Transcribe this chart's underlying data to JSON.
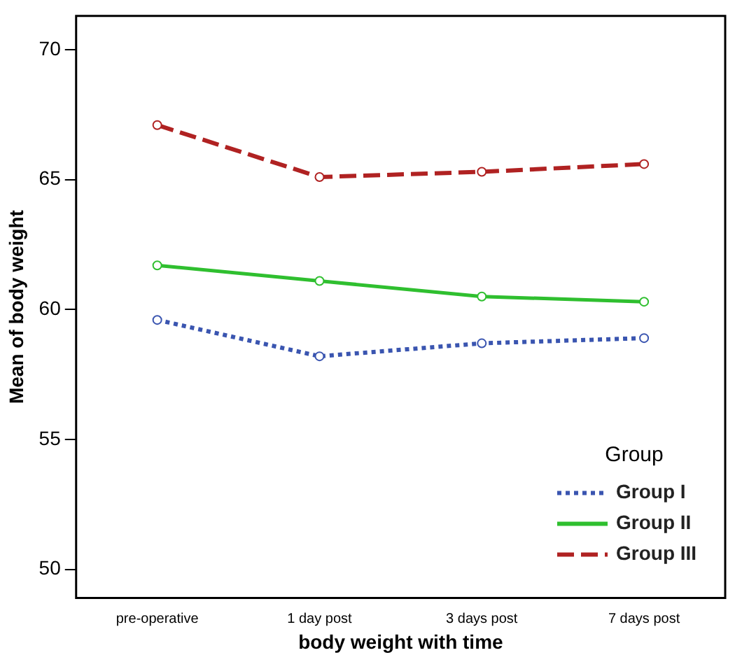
{
  "chart_data": {
    "type": "line",
    "xlabel": "body weight with time",
    "ylabel": "Mean of body weight",
    "legend_title": "Group",
    "categories": [
      "pre-operative",
      "1 day post",
      "3 days post",
      "7 days post"
    ],
    "series": [
      {
        "name": "Group I",
        "color": "#3a55b0",
        "line_style": "dotted",
        "values": [
          59.6,
          58.2,
          58.7,
          58.9
        ]
      },
      {
        "name": "Group II",
        "color": "#2fbf2f",
        "line_style": "solid",
        "values": [
          61.7,
          61.1,
          60.5,
          60.3
        ]
      },
      {
        "name": "Group III",
        "color": "#b02222",
        "line_style": "dashed",
        "values": [
          67.1,
          65.1,
          65.3,
          65.6
        ]
      }
    ],
    "ylim": [
      48.9,
      71.3
    ],
    "yticks": [
      50,
      55,
      60,
      65,
      70
    ],
    "grid": false,
    "legend": "bottom right",
    "marker": "circle"
  }
}
